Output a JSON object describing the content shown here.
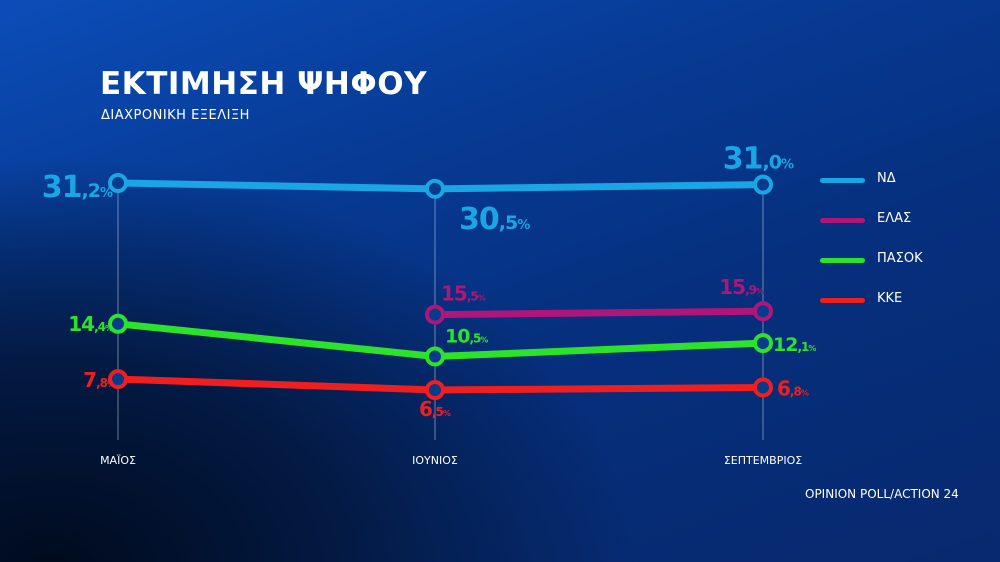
{
  "header": {
    "title": "ΕΚΤΙΜΗΣΗ ΨΗΦΟΥ",
    "subtitle": "ΔΙΑΧΡΟΝΙΚΗ ΕΞΕΛΙΞΗ"
  },
  "source": "OPINION POLL/ACTION 24",
  "chart_data": {
    "type": "line",
    "title": "ΕΚΤΙΜΗΣΗ ΨΗΦΟΥ",
    "subtitle": "ΔΙΑΧΡΟΝΙΚΗ ΕΞΕΛΙΞΗ",
    "categories": [
      "ΜΑΪΟΣ",
      "ΙΟΥΝΙΟΣ",
      "ΣΕΠΤΕΜΒΡΙΟΣ"
    ],
    "value_suffix": "%",
    "grid": "vertical",
    "legend_position": "right",
    "series": [
      {
        "name": "ΝΔ",
        "color": "#1aa6e4",
        "values": [
          31.2,
          30.5,
          31.0
        ],
        "labels": [
          "31,2",
          "30,5",
          "31,0"
        ]
      },
      {
        "name": "ΕΛΑΣ",
        "color": "#b0157a",
        "values": [
          null,
          15.5,
          15.9
        ],
        "labels": [
          null,
          "15,5",
          "15,9"
        ]
      },
      {
        "name": "ΠΑΣΟΚ",
        "color": "#2de22a",
        "values": [
          14.4,
          10.5,
          12.1
        ],
        "labels": [
          "14,4",
          "10,5",
          "12,1"
        ]
      },
      {
        "name": "ΚΚΕ",
        "color": "#ef1f1f",
        "values": [
          7.8,
          6.5,
          6.8
        ],
        "labels": [
          "7,8",
          "6,5",
          "6,8"
        ]
      }
    ]
  }
}
